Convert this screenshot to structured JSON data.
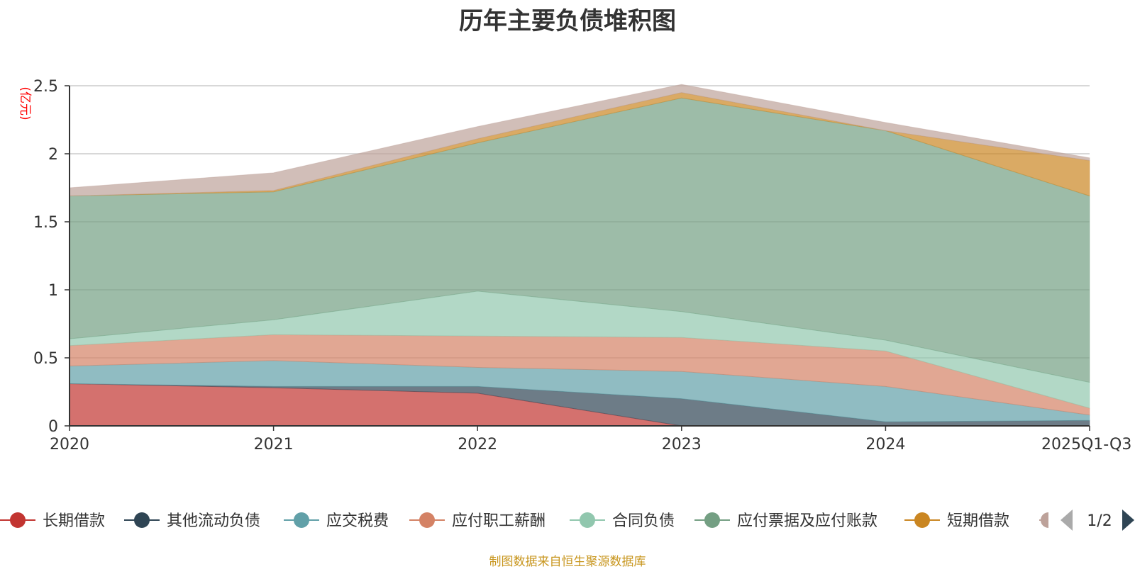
{
  "chart_data": {
    "type": "area",
    "stacked": true,
    "title": "历年主要负债堆积图",
    "ylabel": "(亿元)",
    "xlabel": "",
    "ylim": [
      0,
      2.5
    ],
    "yticks": [
      "0",
      "0.5",
      "1",
      "1.5",
      "2",
      "2.5"
    ],
    "grid": true,
    "categories": [
      "2020",
      "2021",
      "2022",
      "2023",
      "2024",
      "2025Q1-Q3"
    ],
    "series": [
      {
        "name": "长期借款",
        "color": "#c23531",
        "values": [
          0.31,
          0.28,
          0.24,
          0.0,
          0.0,
          0.0
        ]
      },
      {
        "name": "其他流动负债",
        "color": "#2f4554",
        "values": [
          0.0,
          0.01,
          0.05,
          0.2,
          0.03,
          0.04
        ]
      },
      {
        "name": "应交税费",
        "color": "#61a0a8",
        "values": [
          0.13,
          0.19,
          0.14,
          0.2,
          0.26,
          0.04
        ]
      },
      {
        "name": "应付职工薪酬",
        "color": "#d48265",
        "values": [
          0.15,
          0.19,
          0.23,
          0.25,
          0.26,
          0.05
        ]
      },
      {
        "name": "合同负债",
        "color": "#91c7ae",
        "values": [
          0.05,
          0.11,
          0.33,
          0.19,
          0.08,
          0.19
        ]
      },
      {
        "name": "应付票据及应付账款",
        "color": "#749f83",
        "values": [
          1.05,
          0.94,
          1.09,
          1.57,
          1.54,
          1.37
        ]
      },
      {
        "name": "短期借款",
        "color": "#ca8622",
        "values": [
          0.0,
          0.01,
          0.03,
          0.04,
          0.0,
          0.26
        ]
      },
      {
        "name": "",
        "color": "#bda29a",
        "values": [
          0.06,
          0.13,
          0.09,
          0.06,
          0.06,
          0.02
        ]
      }
    ],
    "legend": {
      "position": "bottom",
      "page": "1/2",
      "prev_icon": "triangle-left-icon",
      "next_icon": "triangle-right-icon"
    },
    "source": "制图数据来自恒生聚源数据库",
    "colors": {
      "title": "#333333",
      "unit_label": "#ff0000",
      "source": "#c8961e",
      "axis": "#333333",
      "grid": "#cccccc"
    }
  }
}
